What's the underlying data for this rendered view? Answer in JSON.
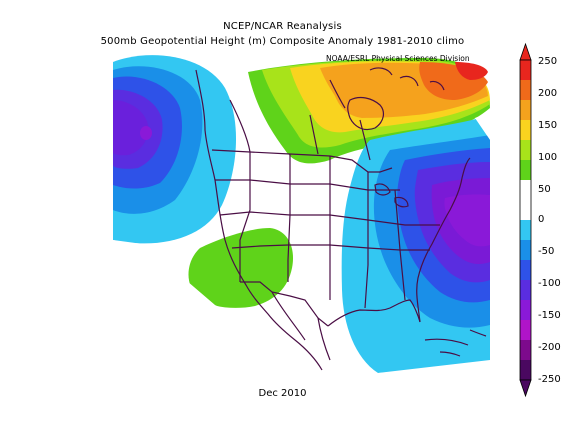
{
  "title": "NCEP/NCAR Reanalysis",
  "subtitle": "500mb Geopotential Height (m) Composite Anomaly 1981-2010 climo",
  "credit": "NOAA/ESRL Physical Sciences Division",
  "footer": "Dec 2010",
  "colorbar": {
    "labels": [
      "250",
      "200",
      "150",
      "100",
      "50",
      "0",
      "-50",
      "-100",
      "-150",
      "-200",
      "-250"
    ],
    "colors": [
      "#e8261e",
      "#f06a1a",
      "#f5a21d",
      "#f9d31f",
      "#a8e31a",
      "#5fd31a",
      "#ffffff",
      "#ffffff",
      "#33c7f2",
      "#1a8fe8",
      "#2e52e8",
      "#5a2de0",
      "#8a19d8",
      "#b014c8",
      "#7d0a8c",
      "#4a0860"
    ]
  },
  "colors": {
    "strong_positive": "#f06a1a",
    "positive": "#5fd31a",
    "negative": "#33c7f2",
    "strong_negative": "#5a2de0",
    "border": "#4a0e45"
  }
}
